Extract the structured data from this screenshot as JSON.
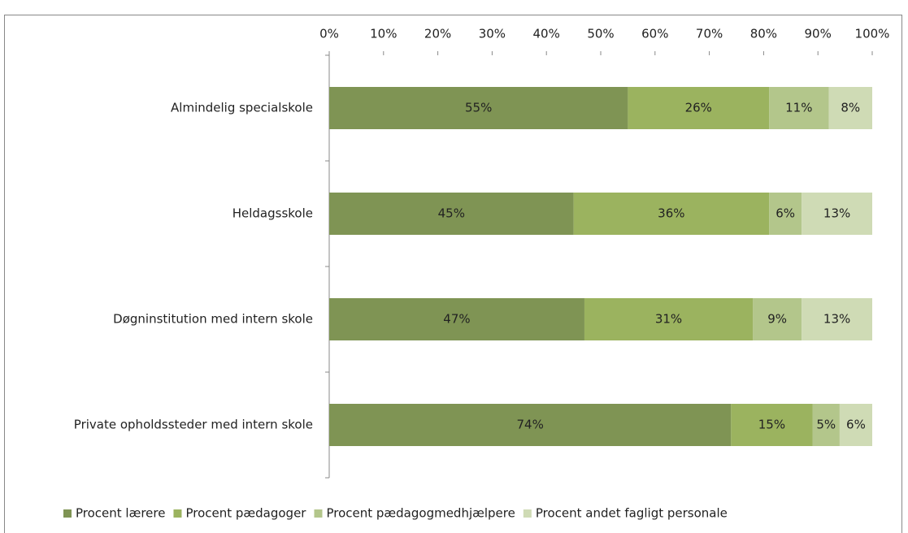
{
  "chart_data": {
    "type": "stacked-bar-horizontal",
    "categories": [
      "Almindelig specialskole",
      "Heldagsskole",
      "Døgninstitution med intern skole",
      "Private opholdssteder med intern skole"
    ],
    "series": [
      {
        "name": "Procent lærere",
        "color": "#7f9454",
        "values": [
          55,
          45,
          47,
          74
        ],
        "value_labels": [
          "55%",
          "45%",
          "47%",
          "74%"
        ]
      },
      {
        "name": "Procent pædagoger",
        "color": "#9bb35f",
        "values": [
          26,
          36,
          31,
          15
        ],
        "value_labels": [
          "26%",
          "36%",
          "31%",
          "15%"
        ]
      },
      {
        "name": "Procent pædagogmedhjælpere",
        "color": "#b3c68b",
        "values": [
          11,
          6,
          9,
          5
        ],
        "value_labels": [
          "11%",
          "6%",
          "9%",
          "5%"
        ]
      },
      {
        "name": "Procent andet fagligt personale",
        "color": "#cfdbb5",
        "values": [
          8,
          13,
          13,
          6
        ],
        "value_labels": [
          "8%",
          "13%",
          "13%",
          "6%"
        ]
      }
    ],
    "xlim": [
      0,
      100
    ],
    "xticks": [
      {
        "value": 0,
        "label": "0%"
      },
      {
        "value": 10,
        "label": "10%"
      },
      {
        "value": 20,
        "label": "20%"
      },
      {
        "value": 30,
        "label": "30%"
      },
      {
        "value": 40,
        "label": "40%"
      },
      {
        "value": 50,
        "label": "50%"
      },
      {
        "value": 60,
        "label": "60%"
      },
      {
        "value": 70,
        "label": "70%"
      },
      {
        "value": 80,
        "label": "80%"
      },
      {
        "value": 90,
        "label": "90%"
      },
      {
        "value": 100,
        "label": "100%"
      }
    ],
    "legend": "bottom"
  }
}
